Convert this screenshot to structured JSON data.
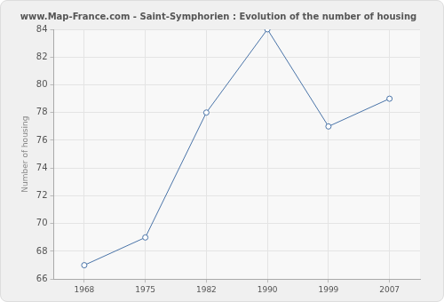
{
  "chart_data": {
    "type": "line",
    "title": "www.Map-France.com - Saint-Symphorien : Evolution of the number of housing",
    "y_label": "Number of housing",
    "categories": [
      "1968",
      "1975",
      "1982",
      "1990",
      "1999",
      "2007"
    ],
    "values": [
      67,
      69,
      78,
      84,
      77,
      79
    ],
    "color": "#4a74a8",
    "marker": "circle",
    "line_style": "solid",
    "ylim": [
      66,
      84
    ],
    "yticks": [
      66,
      68,
      70,
      72,
      74,
      76,
      78,
      80,
      82,
      84
    ],
    "grid": true
  }
}
